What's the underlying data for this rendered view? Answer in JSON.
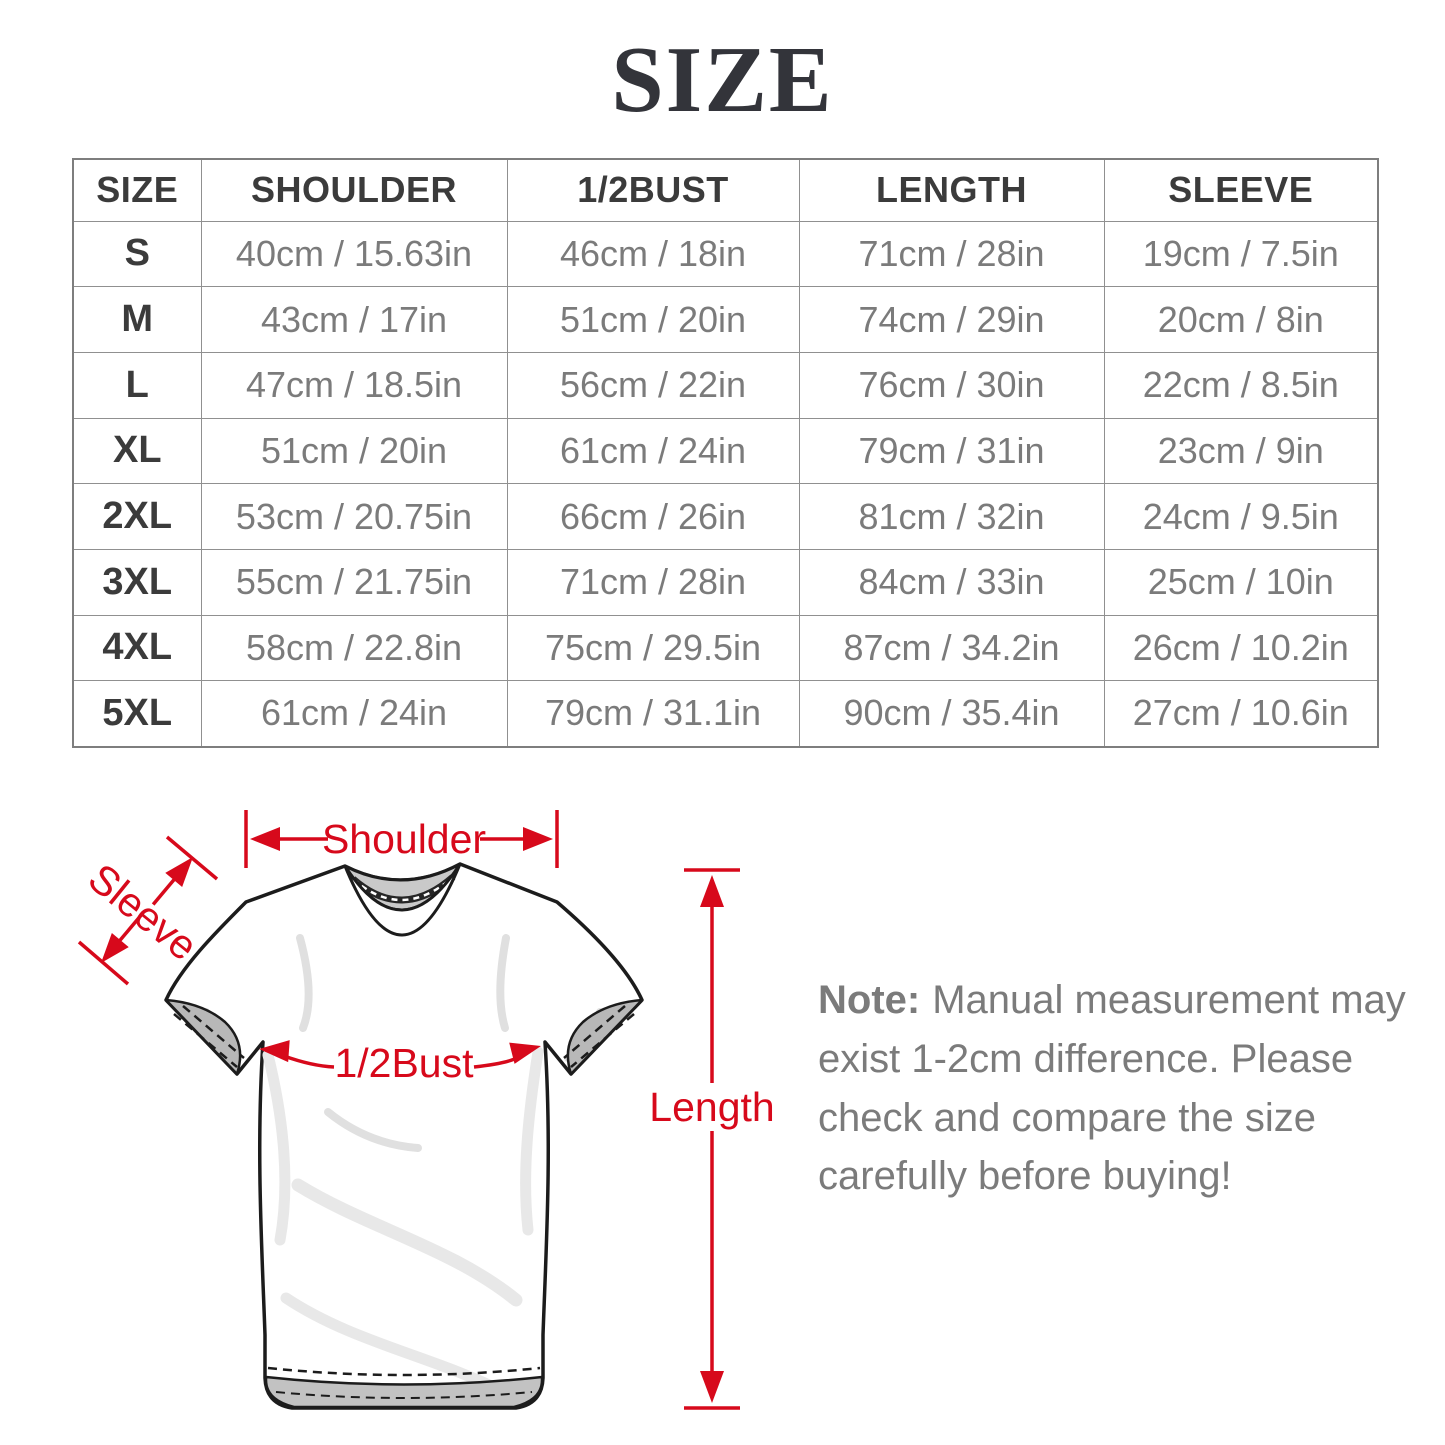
{
  "title": "SIZE",
  "colors": {
    "accent_red": "#d7091b",
    "table_border": "#909090",
    "heading_text": "#3b3b3b",
    "value_text": "#7b7b7b",
    "title_text": "#33343a",
    "outline_black": "#1c1c1c",
    "collar_gray": "#c9c9c9"
  },
  "table": {
    "headers": [
      "SIZE",
      "SHOULDER",
      "1/2BUST",
      "LENGTH",
      "SLEEVE"
    ],
    "rows": [
      [
        "S",
        "40cm / 15.63in",
        "46cm / 18in",
        "71cm / 28in",
        "19cm / 7.5in"
      ],
      [
        "M",
        "43cm / 17in",
        "51cm / 20in",
        "74cm / 29in",
        "20cm / 8in"
      ],
      [
        "L",
        "47cm / 18.5in",
        "56cm / 22in",
        "76cm / 30in",
        "22cm / 8.5in"
      ],
      [
        "XL",
        "51cm / 20in",
        "61cm / 24in",
        "79cm / 31in",
        "23cm / 9in"
      ],
      [
        "2XL",
        "53cm / 20.75in",
        "66cm / 26in",
        "81cm / 32in",
        "24cm / 9.5in"
      ],
      [
        "3XL",
        "55cm / 21.75in",
        "71cm / 28in",
        "84cm / 33in",
        "25cm / 10in"
      ],
      [
        "4XL",
        "58cm / 22.8in",
        "75cm / 29.5in",
        "87cm / 34.2in",
        "26cm / 10.2in"
      ],
      [
        "5XL",
        "61cm / 24in",
        "79cm / 31.1in",
        "90cm / 35.4in",
        "27cm / 10.6in"
      ]
    ]
  },
  "diagram": {
    "labels": {
      "shoulder": "Shoulder",
      "sleeve": "Sleeve",
      "bust": "1/2Bust",
      "length": "Length"
    }
  },
  "note": {
    "label": "Note:",
    "text": "Manual measurement may exist 1-2cm difference. Please check and compare the size carefully before buying!"
  }
}
